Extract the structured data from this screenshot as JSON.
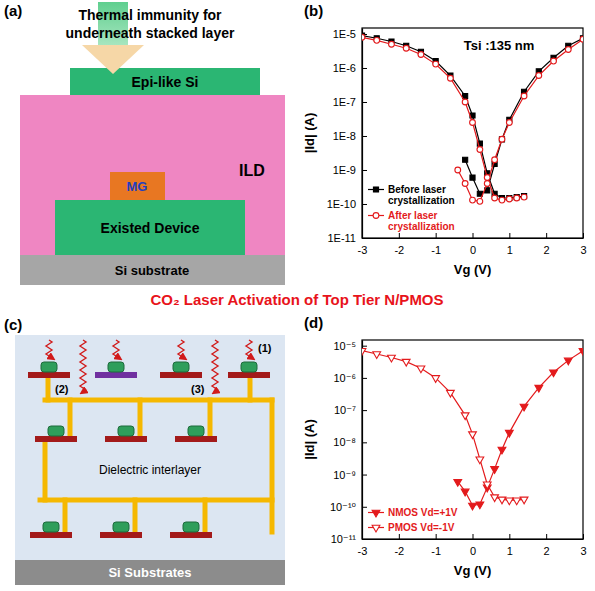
{
  "title": "CO₂ Laser Activation of Top Tier N/PMOS",
  "diagrams": {
    "a": {
      "panel": "(a)",
      "arrow_label": "Thermal immunity for underneath stacked layer",
      "layers": {
        "epi": "Epi-like Si",
        "ild": "ILD",
        "gate": "MG",
        "device": "Existed Device",
        "substrate": "Si substrate"
      }
    },
    "c": {
      "panel": "(c)",
      "dielectric": "Dielectric interlayer",
      "substrate": "Si Substrates",
      "laser_paths": [
        "(1)",
        "(2)",
        "(3)"
      ]
    }
  },
  "chart_data": [
    {
      "type": "line",
      "panel": "(b)",
      "annotations": [
        "Tsi :135 nm"
      ],
      "x_label": "Vg (V)",
      "y_label": "|Id| (A)",
      "xlim": [
        -3,
        3
      ],
      "xticks": [
        -3,
        -2,
        -1,
        0,
        1,
        2,
        3
      ],
      "ylim": [
        1e-11,
        1.5e-05
      ],
      "yticks": [
        {
          "value": 1e-11,
          "label": "1E-11"
        },
        {
          "value": 1e-10,
          "label": "1E-10"
        },
        {
          "value": 1e-09,
          "label": "1E-9"
        },
        {
          "value": 1e-08,
          "label": "1E-8"
        },
        {
          "value": 1e-07,
          "label": "1E-7"
        },
        {
          "value": 1e-06,
          "label": "1E-6"
        },
        {
          "value": 1e-05,
          "label": "1E-5"
        }
      ],
      "log": "y",
      "legend": "lower left",
      "series": [
        {
          "name": "Before laser crystallization",
          "color": "#000000",
          "marker": "square",
          "line_style": "solid",
          "x": [
            -3,
            -2.6,
            -2.2,
            -1.8,
            -1.4,
            -1,
            -0.6,
            -0.2,
            0,
            0.2,
            0.4,
            0.6,
            0.8,
            1,
            1.2,
            1.4,
            null,
            -0.2,
            0,
            0.2,
            0.4,
            0.6,
            0.8,
            1,
            1.4,
            1.8,
            2.2,
            2.6,
            3
          ],
          "values": [
            9e-06,
            7.5e-06,
            6e-06,
            4.5e-06,
            3e-06,
            1.6e-06,
            6e-07,
            1.5e-07,
            4e-08,
            6e-09,
            8e-10,
            2e-10,
            1.5e-10,
            1.5e-10,
            1.6e-10,
            1.7e-10,
            null,
            2e-09,
            6e-10,
            2e-10,
            2.5e-10,
            1.5e-09,
            8e-09,
            3e-08,
            2e-07,
            8e-07,
            2e-06,
            4.5e-06,
            7.5e-06
          ]
        },
        {
          "name": "After laser crystallization",
          "color": "#e31a1c",
          "marker": "circle-open",
          "line_style": "solid",
          "x": [
            -3,
            -2.6,
            -2.2,
            -1.8,
            -1.4,
            -1,
            -0.6,
            -0.2,
            0,
            0.2,
            0.4,
            0.6,
            0.8,
            1,
            1.2,
            1.4,
            null,
            -0.4,
            -0.2,
            0,
            0.2,
            0.4,
            0.6,
            0.8,
            1,
            1.4,
            1.8,
            2.2,
            2.6,
            3
          ],
          "values": [
            8e-06,
            6.5e-06,
            5e-06,
            3.8e-06,
            2.5e-06,
            1.3e-06,
            5e-07,
            1e-07,
            2.5e-08,
            4e-09,
            6e-10,
            1.5e-10,
            1.3e-10,
            1.4e-10,
            1.5e-10,
            1.6e-10,
            null,
            1e-09,
            4e-10,
            1.3e-10,
            1.2e-10,
            4e-10,
            2e-09,
            8e-09,
            2.5e-08,
            1.5e-07,
            6e-07,
            1.6e-06,
            3.5e-06,
            7e-06
          ]
        }
      ]
    },
    {
      "type": "line",
      "panel": "(d)",
      "x_label": "Vg (V)",
      "y_label": "|Id| (A)",
      "xlim": [
        -3,
        3
      ],
      "xticks": [
        -3,
        -2,
        -1,
        0,
        1,
        2,
        3
      ],
      "ylim": [
        1e-11,
        1.5e-05
      ],
      "yticks": [
        {
          "value": 1e-11,
          "label": "10⁻¹¹"
        },
        {
          "value": 1e-10,
          "label": "10⁻¹⁰"
        },
        {
          "value": 1e-09,
          "label": "10⁻⁹"
        },
        {
          "value": 1e-08,
          "label": "10⁻⁸"
        },
        {
          "value": 1e-07,
          "label": "10⁻⁷"
        },
        {
          "value": 1e-06,
          "label": "10⁻⁶"
        },
        {
          "value": 1e-05,
          "label": "10⁻⁵"
        }
      ],
      "log": "y",
      "legend": "lower left",
      "series": [
        {
          "name": "NMOS Vd=+1V",
          "color": "#e31a1c",
          "marker": "triangle-down",
          "line_style": "solid",
          "x": [
            -0.4,
            -0.2,
            0,
            0.2,
            0.4,
            0.6,
            0.8,
            1,
            1.4,
            1.8,
            2.2,
            2.6,
            3
          ],
          "values": [
            6e-10,
            3e-10,
            1.1e-10,
            1.2e-10,
            4e-10,
            1.5e-09,
            6e-09,
            2e-08,
            1.3e-07,
            5e-07,
            1.5e-06,
            3.5e-06,
            7e-06
          ]
        },
        {
          "name": "PMOS Vd=-1V",
          "color": "#e31a1c",
          "marker": "triangle-down-open",
          "line_style": "solid",
          "x": [
            -3,
            -2.6,
            -2.2,
            -1.8,
            -1.4,
            -1,
            -0.6,
            -0.2,
            0,
            0.2,
            0.4,
            0.6,
            0.8,
            1,
            1.2,
            1.4
          ],
          "values": [
            7e-06,
            5.5e-06,
            4.3e-06,
            3.2e-06,
            2e-06,
            1e-06,
            3.5e-07,
            7e-08,
            1.8e-08,
            3e-09,
            5e-10,
            2e-10,
            1.7e-10,
            1.6e-10,
            1.6e-10,
            1.7e-10
          ]
        }
      ]
    }
  ]
}
